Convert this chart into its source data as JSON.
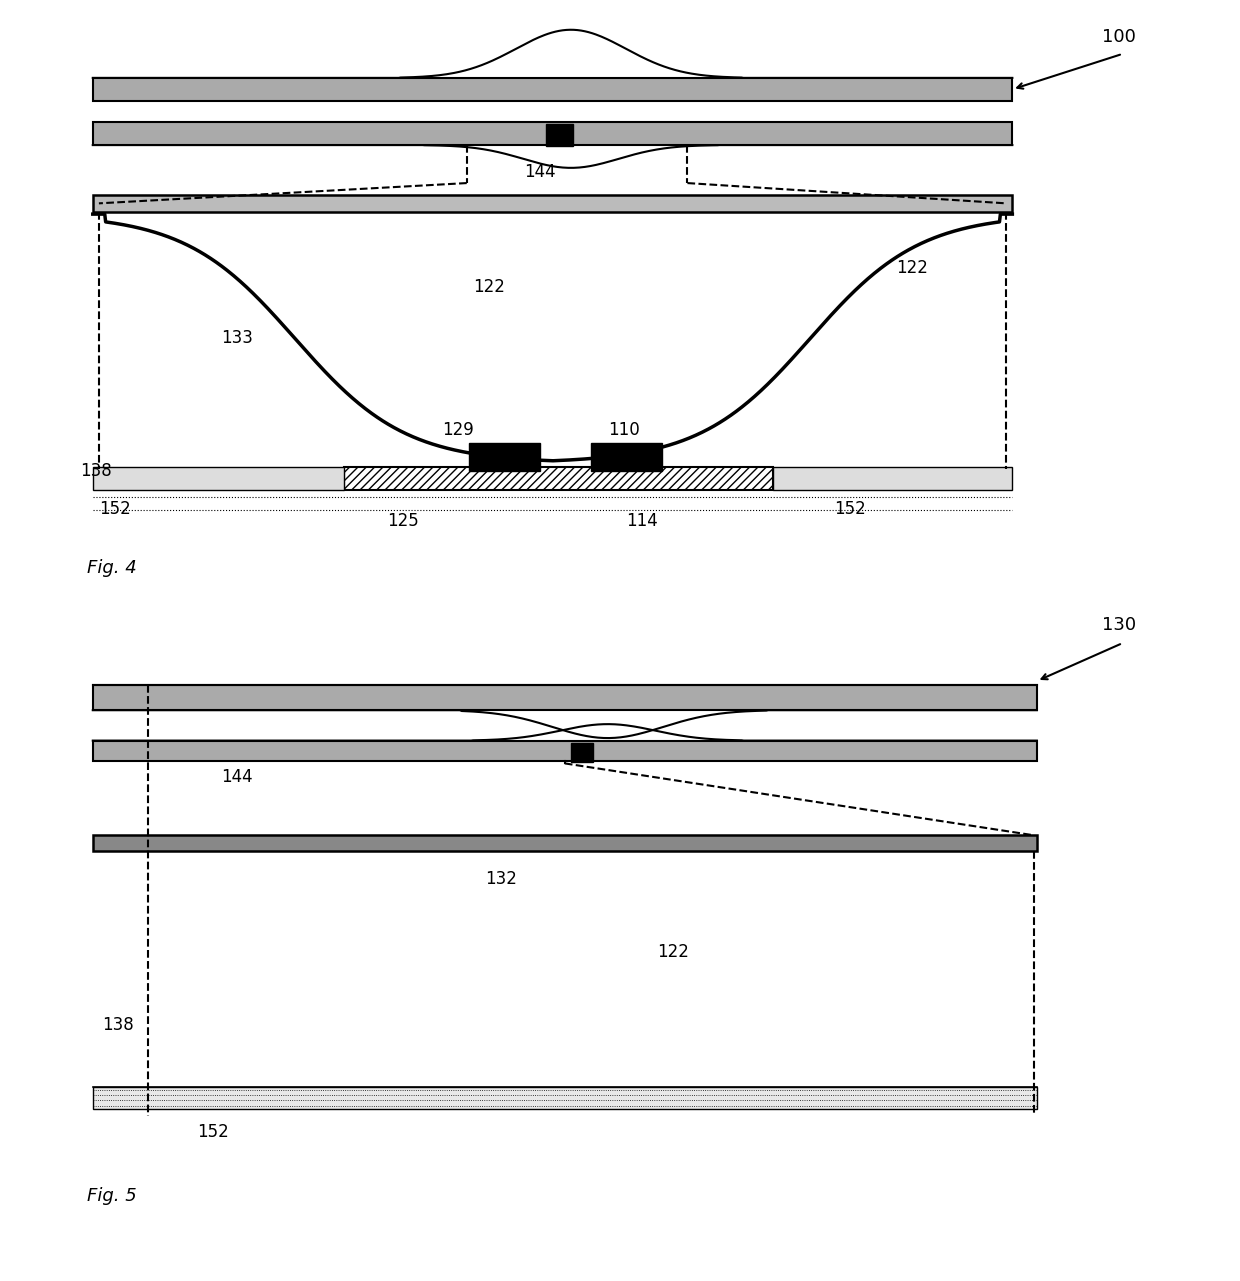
{
  "fig_width": 12.4,
  "fig_height": 12.81,
  "bg_color": "#ffffff",
  "line_color": "#000000",
  "dark_gray": "#555555",
  "med_gray": "#999999",
  "light_gray": "#cccccc",
  "hatch_gray": "#bbbbbb"
}
